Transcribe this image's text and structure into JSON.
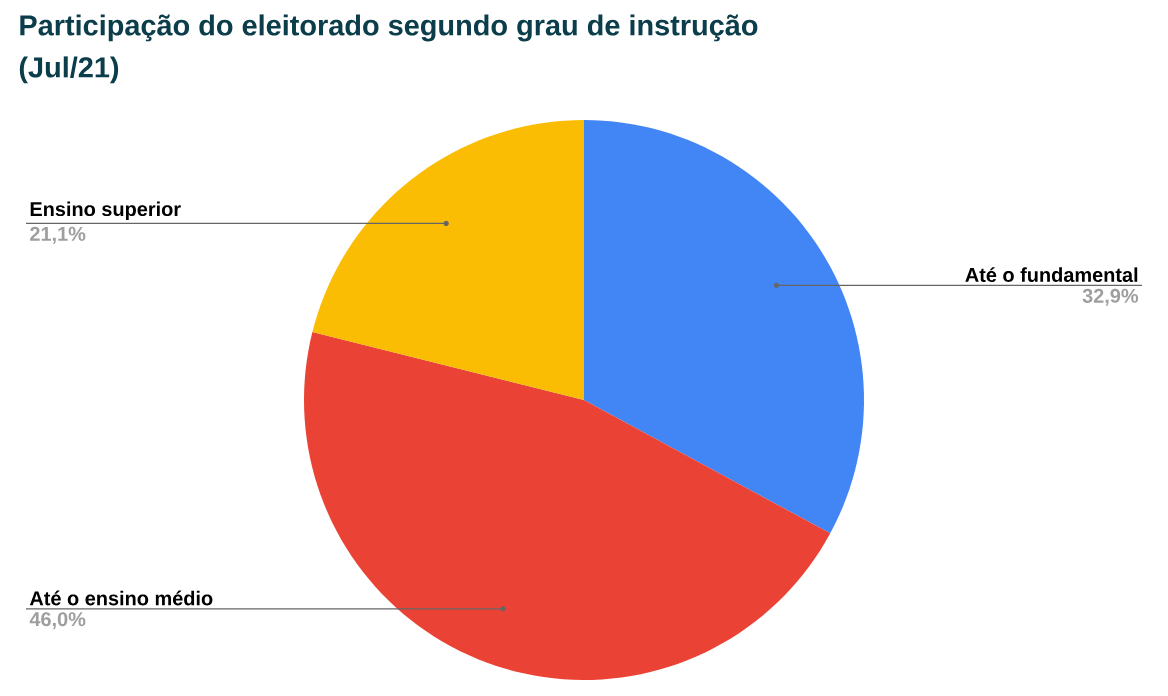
{
  "chart_data": {
    "type": "pie",
    "title": "Participação do eleitorado segundo grau de instrução",
    "subtitle": "(Jul/21)",
    "categories": [
      "Até o fundamental",
      "Até o ensino médio",
      "Ensino superior"
    ],
    "values": [
      32.9,
      46.0,
      21.1
    ],
    "value_labels": [
      "32,9%",
      "46,0%",
      "21,1%"
    ],
    "colors": [
      "#4285f4",
      "#ea4335",
      "#fbbc04"
    ]
  }
}
